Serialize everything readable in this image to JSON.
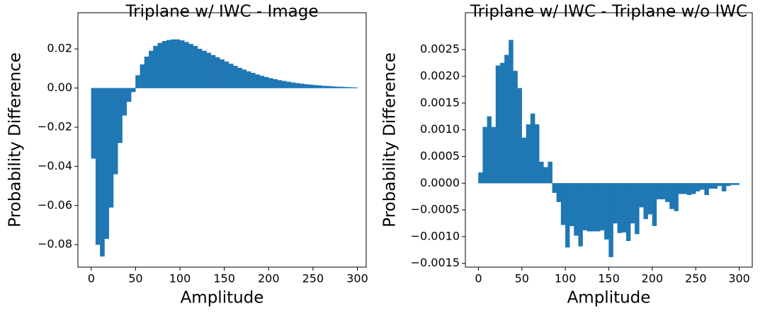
{
  "chart_data": [
    {
      "type": "histogram",
      "title": "Triplane w/ IWC - Image",
      "xlabel": "Amplitude",
      "ylabel": "Probability Difference",
      "color": "#1f77b4",
      "bins": [
        0,
        5,
        10,
        15,
        20,
        25,
        30,
        35,
        40,
        45,
        50,
        55,
        60,
        65,
        70,
        75,
        80,
        85,
        90,
        95,
        100,
        105,
        110,
        115,
        120,
        125,
        130,
        135,
        140,
        145,
        150,
        155,
        160,
        165,
        170,
        175,
        180,
        185,
        190,
        195,
        200,
        205,
        210,
        215,
        220,
        225,
        230,
        235,
        240,
        245,
        250,
        255,
        260,
        265,
        270,
        275,
        280,
        285,
        290,
        295,
        300
      ],
      "counts": [
        -0.036,
        -0.08,
        -0.086,
        -0.077,
        -0.061,
        -0.044,
        -0.028,
        -0.014,
        -0.007,
        -0.002,
        0.0065,
        0.012,
        0.016,
        0.019,
        0.0215,
        0.023,
        0.024,
        0.0245,
        0.0248,
        0.0248,
        0.0243,
        0.0235,
        0.0225,
        0.0215,
        0.02,
        0.019,
        0.018,
        0.0168,
        0.0157,
        0.0146,
        0.0135,
        0.0124,
        0.0113,
        0.0103,
        0.0094,
        0.0085,
        0.0077,
        0.0069,
        0.0062,
        0.0056,
        0.005,
        0.0045,
        0.004,
        0.0036,
        0.0032,
        0.0028,
        0.0025,
        0.0022,
        0.0019,
        0.0017,
        0.0015,
        0.0013,
        0.0011,
        0.001,
        0.0008,
        0.0007,
        0.0006,
        0.0005,
        0.0004,
        0.0003
      ],
      "xlim": [
        -15,
        310
      ],
      "ylim": [
        -0.0915,
        0.0385
      ],
      "xticks": [
        0,
        50,
        100,
        150,
        200,
        250,
        300
      ],
      "yticks": [
        {
          "value": -0.08,
          "label": "−0.08"
        },
        {
          "value": -0.06,
          "label": "−0.06"
        },
        {
          "value": -0.04,
          "label": "−0.04"
        },
        {
          "value": -0.02,
          "label": "−0.02"
        },
        {
          "value": 0,
          "label": "0.00"
        },
        {
          "value": 0.02,
          "label": "0.02"
        }
      ]
    },
    {
      "type": "histogram",
      "title": "Triplane w/ IWC - Triplane w/o IWC",
      "xlabel": "Amplitude",
      "ylabel": "Probability Difference",
      "color": "#1f77b4",
      "bins": [
        0,
        5,
        10,
        15,
        20,
        25,
        30,
        35,
        40,
        45,
        50,
        55,
        60,
        65,
        70,
        75,
        80,
        85,
        90,
        95,
        100,
        105,
        110,
        115,
        120,
        125,
        130,
        135,
        140,
        145,
        150,
        155,
        160,
        165,
        170,
        175,
        180,
        185,
        190,
        195,
        200,
        205,
        210,
        215,
        220,
        225,
        230,
        235,
        240,
        245,
        250,
        255,
        260,
        265,
        270,
        275,
        280,
        285,
        290,
        295,
        300
      ],
      "counts": [
        0.0002,
        0.00105,
        0.00125,
        0.00105,
        0.0022,
        0.00225,
        0.0024,
        0.00268,
        0.0021,
        0.00178,
        0.00085,
        0.0011,
        0.0013,
        0.0011,
        0.0004,
        0.0003,
        0.0004,
        -0.00018,
        -0.00035,
        -0.00078,
        -0.0012,
        -0.0008,
        -0.00098,
        -0.00118,
        -0.00088,
        -0.0009,
        -0.0009,
        -0.0009,
        -0.00088,
        -0.00105,
        -0.00138,
        -0.00075,
        -0.00093,
        -0.00092,
        -0.00108,
        -0.00075,
        -0.00095,
        -0.00045,
        -0.00067,
        -0.00058,
        -0.0008,
        -0.0003,
        -0.0003,
        -0.00035,
        -0.00048,
        -0.00052,
        -0.0002,
        -0.0002,
        -0.00022,
        -0.0002,
        -0.00015,
        -0.00012,
        -0.00022,
        -0.0001,
        -0.0001,
        -5e-05,
        -0.00015,
        -5e-05,
        -3e-05,
        -3e-05
      ],
      "xlim": [
        -15,
        315
      ],
      "ylim": [
        -0.00157,
        0.00319
      ],
      "xticks": [
        0,
        50,
        100,
        150,
        200,
        250,
        300
      ],
      "yticks": [
        {
          "value": -0.0015,
          "label": "−0.0015"
        },
        {
          "value": -0.001,
          "label": "−0.0010"
        },
        {
          "value": -0.0005,
          "label": "−0.0005"
        },
        {
          "value": 0,
          "label": "0.0000"
        },
        {
          "value": 0.0005,
          "label": "0.0005"
        },
        {
          "value": 0.001,
          "label": "0.0010"
        },
        {
          "value": 0.0015,
          "label": "0.0015"
        },
        {
          "value": 0.002,
          "label": "0.0020"
        },
        {
          "value": 0.0025,
          "label": "0.0025"
        }
      ]
    }
  ]
}
